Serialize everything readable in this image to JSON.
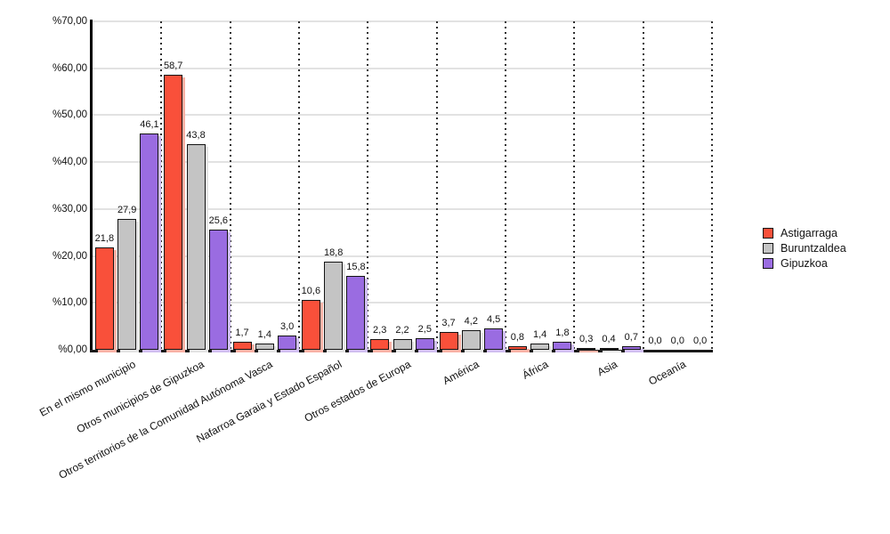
{
  "chart_data": {
    "type": "bar",
    "title": "",
    "categories": [
      "En el mismo municipio",
      "Otros municipios de Gipuzkoa",
      "Otros territorios de la Comunidad Autónoma Vasca",
      "Nafarroa Garaia y Estado Español",
      "Otros estados de Europa",
      "América",
      "África",
      "Asia",
      "Oceanía"
    ],
    "series": [
      {
        "name": "Astigarraga",
        "color": "#f9503a",
        "shadow_color": "#fcb2a6",
        "values": [
          21.8,
          58.7,
          1.7,
          10.6,
          2.3,
          3.7,
          0.8,
          0.3,
          0.0
        ],
        "labels": [
          "21,8",
          "58,7",
          "1,7",
          "10,6",
          "2,3",
          "3,7",
          "0,8",
          "0,3",
          "0,0"
        ]
      },
      {
        "name": "Buruntzaldea",
        "color": "#c4c4c4",
        "shadow_color": "#e4e4e4",
        "values": [
          27.9,
          43.8,
          1.4,
          18.8,
          2.2,
          4.2,
          1.4,
          0.4,
          0.0
        ],
        "labels": [
          "27,9",
          "43,8",
          "1,4",
          "18,8",
          "2,2",
          "4,2",
          "1,4",
          "0,4",
          "0,0"
        ]
      },
      {
        "name": "Gipuzkoa",
        "color": "#9a6ce1",
        "shadow_color": "#d1bff2",
        "values": [
          46.1,
          25.6,
          3.0,
          15.8,
          2.5,
          4.5,
          1.8,
          0.7,
          0.0
        ],
        "labels": [
          "46,1",
          "25,6",
          "3,0",
          "15,8",
          "2,5",
          "4,5",
          "1,8",
          "0,7",
          "0,0"
        ]
      }
    ],
    "ylim": [
      0,
      70
    ],
    "ytick_step": 10,
    "ytick_labels": [
      "%0,00",
      "%10,00",
      "%20,00",
      "%30,00",
      "%40,00",
      "%50,00",
      "%60,00",
      "%70,00"
    ],
    "xlabel": "",
    "ylabel": "",
    "grid": true,
    "vertical_separators": "dotted",
    "legend_position": "right"
  }
}
